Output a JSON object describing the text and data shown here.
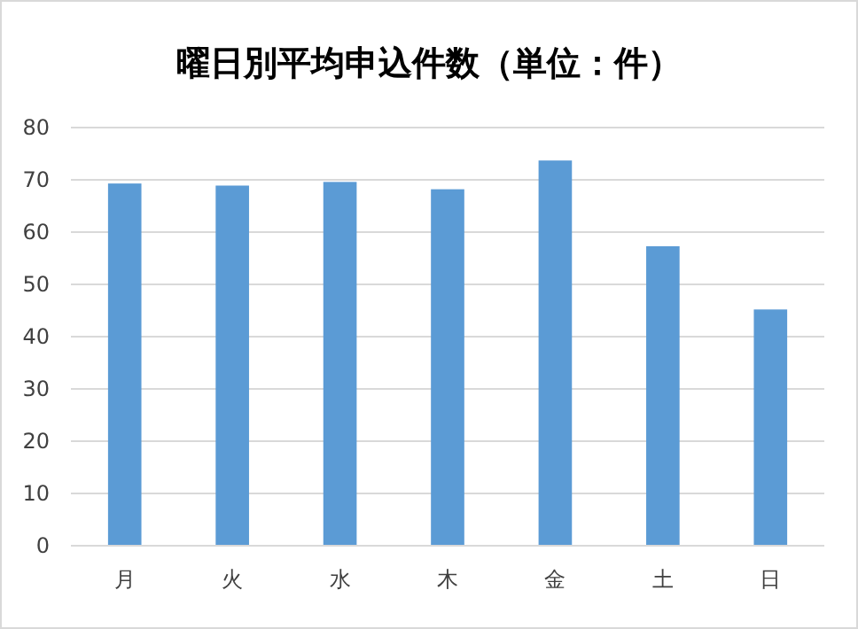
{
  "chart_data": {
    "type": "bar",
    "title": "曜日別平均申込件数（単位：件）",
    "categories": [
      "月",
      "火",
      "水",
      "木",
      "金",
      "土",
      "日"
    ],
    "values": [
      69.3,
      68.9,
      69.6,
      68.2,
      73.7,
      57.3,
      45.2
    ],
    "color": "#5b9bd5",
    "ylim": [
      0,
      80
    ],
    "yticks": [
      0,
      10,
      20,
      30,
      40,
      50,
      60,
      70,
      80
    ],
    "grid": "y"
  }
}
